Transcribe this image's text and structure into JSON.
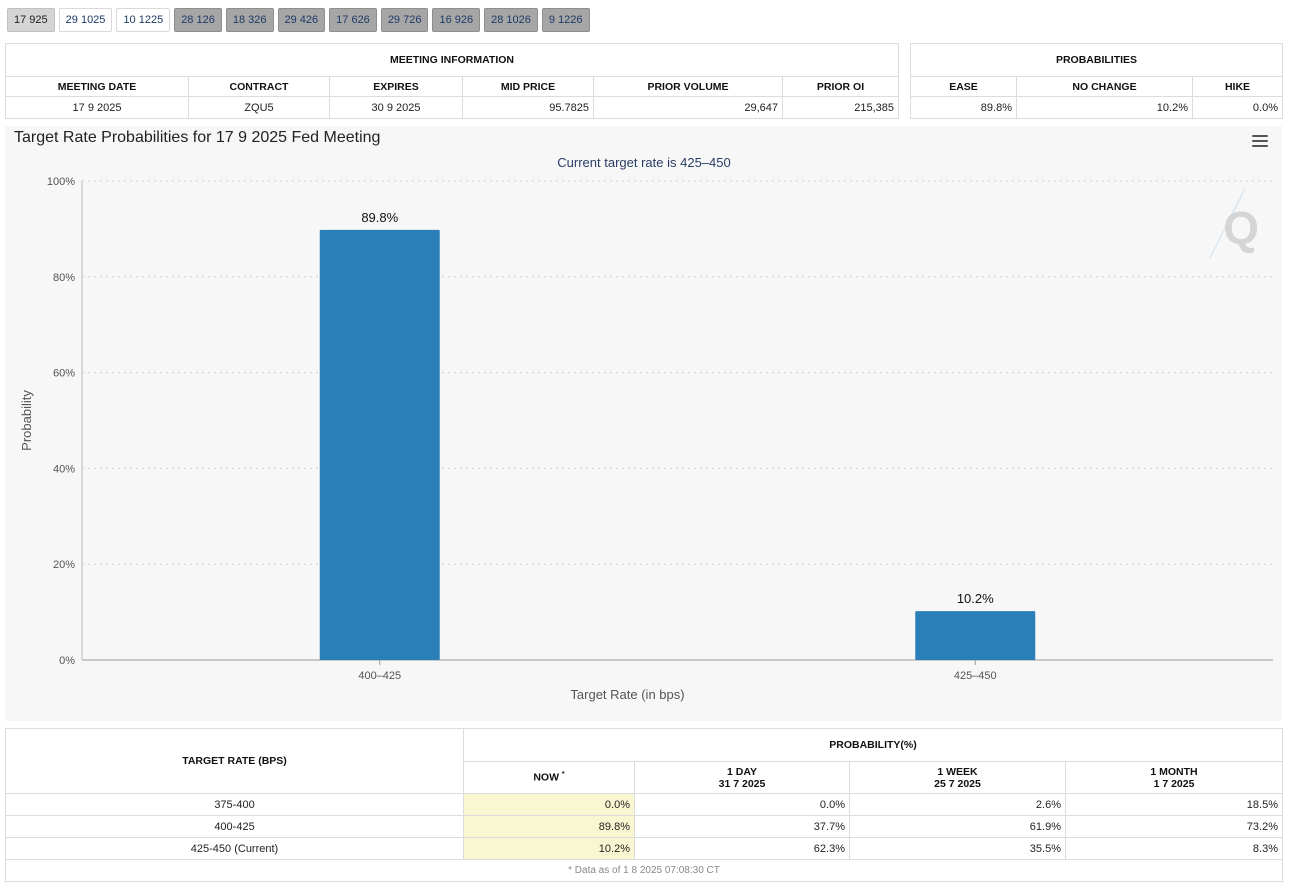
{
  "tabs": [
    {
      "label": "17 925",
      "style": "active"
    },
    {
      "label": "29 1025",
      "style": "white"
    },
    {
      "label": "10 1225",
      "style": "white"
    },
    {
      "label": "28 126",
      "style": "dark"
    },
    {
      "label": "18 326",
      "style": "dark"
    },
    {
      "label": "29 426",
      "style": "dark"
    },
    {
      "label": "17 626",
      "style": "dark"
    },
    {
      "label": "29 726",
      "style": "dark"
    },
    {
      "label": "16 926",
      "style": "dark"
    },
    {
      "label": "28 1026",
      "style": "dark"
    },
    {
      "label": "9 1226",
      "style": "dark"
    }
  ],
  "meeting": {
    "section_title": "MEETING INFORMATION",
    "headers": [
      "MEETING DATE",
      "CONTRACT",
      "EXPIRES",
      "MID PRICE",
      "PRIOR VOLUME",
      "PRIOR OI"
    ],
    "values": [
      "17 9 2025",
      "ZQU5",
      "30 9 2025",
      "95.7825",
      "29,647",
      "215,385"
    ]
  },
  "probabilities": {
    "section_title": "PROBABILITIES",
    "headers": [
      "EASE",
      "NO CHANGE",
      "HIKE"
    ],
    "values": [
      "89.8%",
      "10.2%",
      "0.0%"
    ]
  },
  "chart": {
    "title": "Target Rate Probabilities for 17 9 2025 Fed Meeting",
    "menu_icon": "hamburger-menu-icon",
    "watermark_icon": "q-logo-icon",
    "bar_color": "#2a7fb8"
  },
  "chart_data": {
    "type": "bar",
    "title": "Target Rate Probabilities for 17 9 2025 Fed Meeting",
    "subtitle": "Current target rate is 425–450",
    "categories": [
      "400–425",
      "425–450"
    ],
    "values": [
      89.8,
      10.2
    ],
    "data_labels": [
      "89.8%",
      "10.2%"
    ],
    "xlabel": "Target Rate (in bps)",
    "ylabel": "Probability",
    "ylim": [
      0,
      100
    ],
    "yticks": [
      "0%",
      "20%",
      "40%",
      "60%",
      "80%",
      "100%"
    ],
    "grid": true
  },
  "rate_table": {
    "col1_header": "TARGET RATE (BPS)",
    "prob_header": "PROBABILITY(%)",
    "sub_headers": [
      {
        "line1": "NOW",
        "line2": ""
      },
      {
        "line1": "1 DAY",
        "line2": "31 7 2025"
      },
      {
        "line1": "1 WEEK",
        "line2": "25 7 2025"
      },
      {
        "line1": "1 MONTH",
        "line2": "1 7 2025"
      }
    ],
    "now_marker": "*",
    "rows": [
      {
        "rate": "375-400",
        "now": "0.0%",
        "day": "0.0%",
        "week": "2.6%",
        "month": "18.5%"
      },
      {
        "rate": "400-425",
        "now": "89.8%",
        "day": "37.7%",
        "week": "61.9%",
        "month": "73.2%"
      },
      {
        "rate": "425-450 (Current)",
        "now": "10.2%",
        "day": "62.3%",
        "week": "35.5%",
        "month": "8.3%"
      }
    ],
    "footnote": "* Data as of 1 8 2025 07:08:30 CT"
  }
}
